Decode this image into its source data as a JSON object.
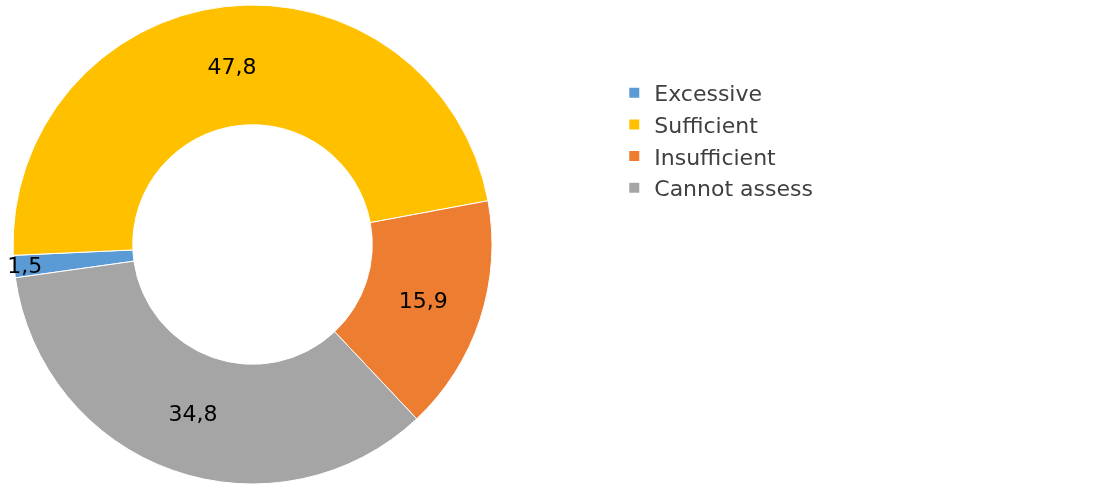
{
  "chart_data": {
    "type": "donut",
    "categories": [
      "Excessive",
      "Sufficient",
      "Insufficient",
      "Cannot assess"
    ],
    "values": [
      1.5,
      47.8,
      15.9,
      34.8
    ],
    "value_labels": [
      "1,5",
      "47,8",
      "15,9",
      "34,8"
    ],
    "colors": [
      "#5b9bd5",
      "#ffc000",
      "#ed7d31",
      "#a5a5a5"
    ],
    "legend": "right"
  }
}
